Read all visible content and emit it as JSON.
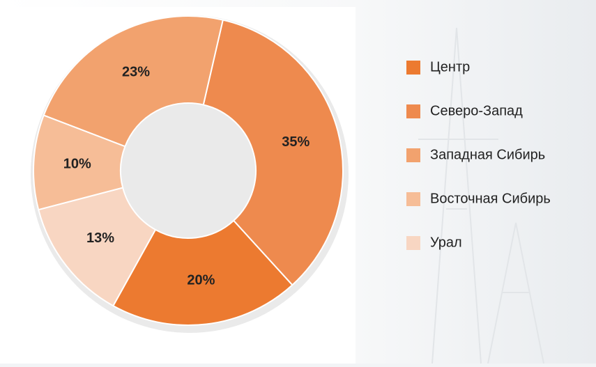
{
  "chart_data": {
    "type": "donut",
    "categories": [
      "Центр",
      "Северо-Запад",
      "Западная Сибирь",
      "Восточная Сибирь",
      "Урал"
    ],
    "values": [
      20,
      35,
      23,
      10,
      13
    ],
    "value_labels": [
      "20%",
      "35%",
      "23%",
      "10%",
      "13%"
    ],
    "colors": [
      "#ec7a30",
      "#ee8a4e",
      "#f2a26e",
      "#f6bd97",
      "#f8d6c2"
    ]
  }
}
